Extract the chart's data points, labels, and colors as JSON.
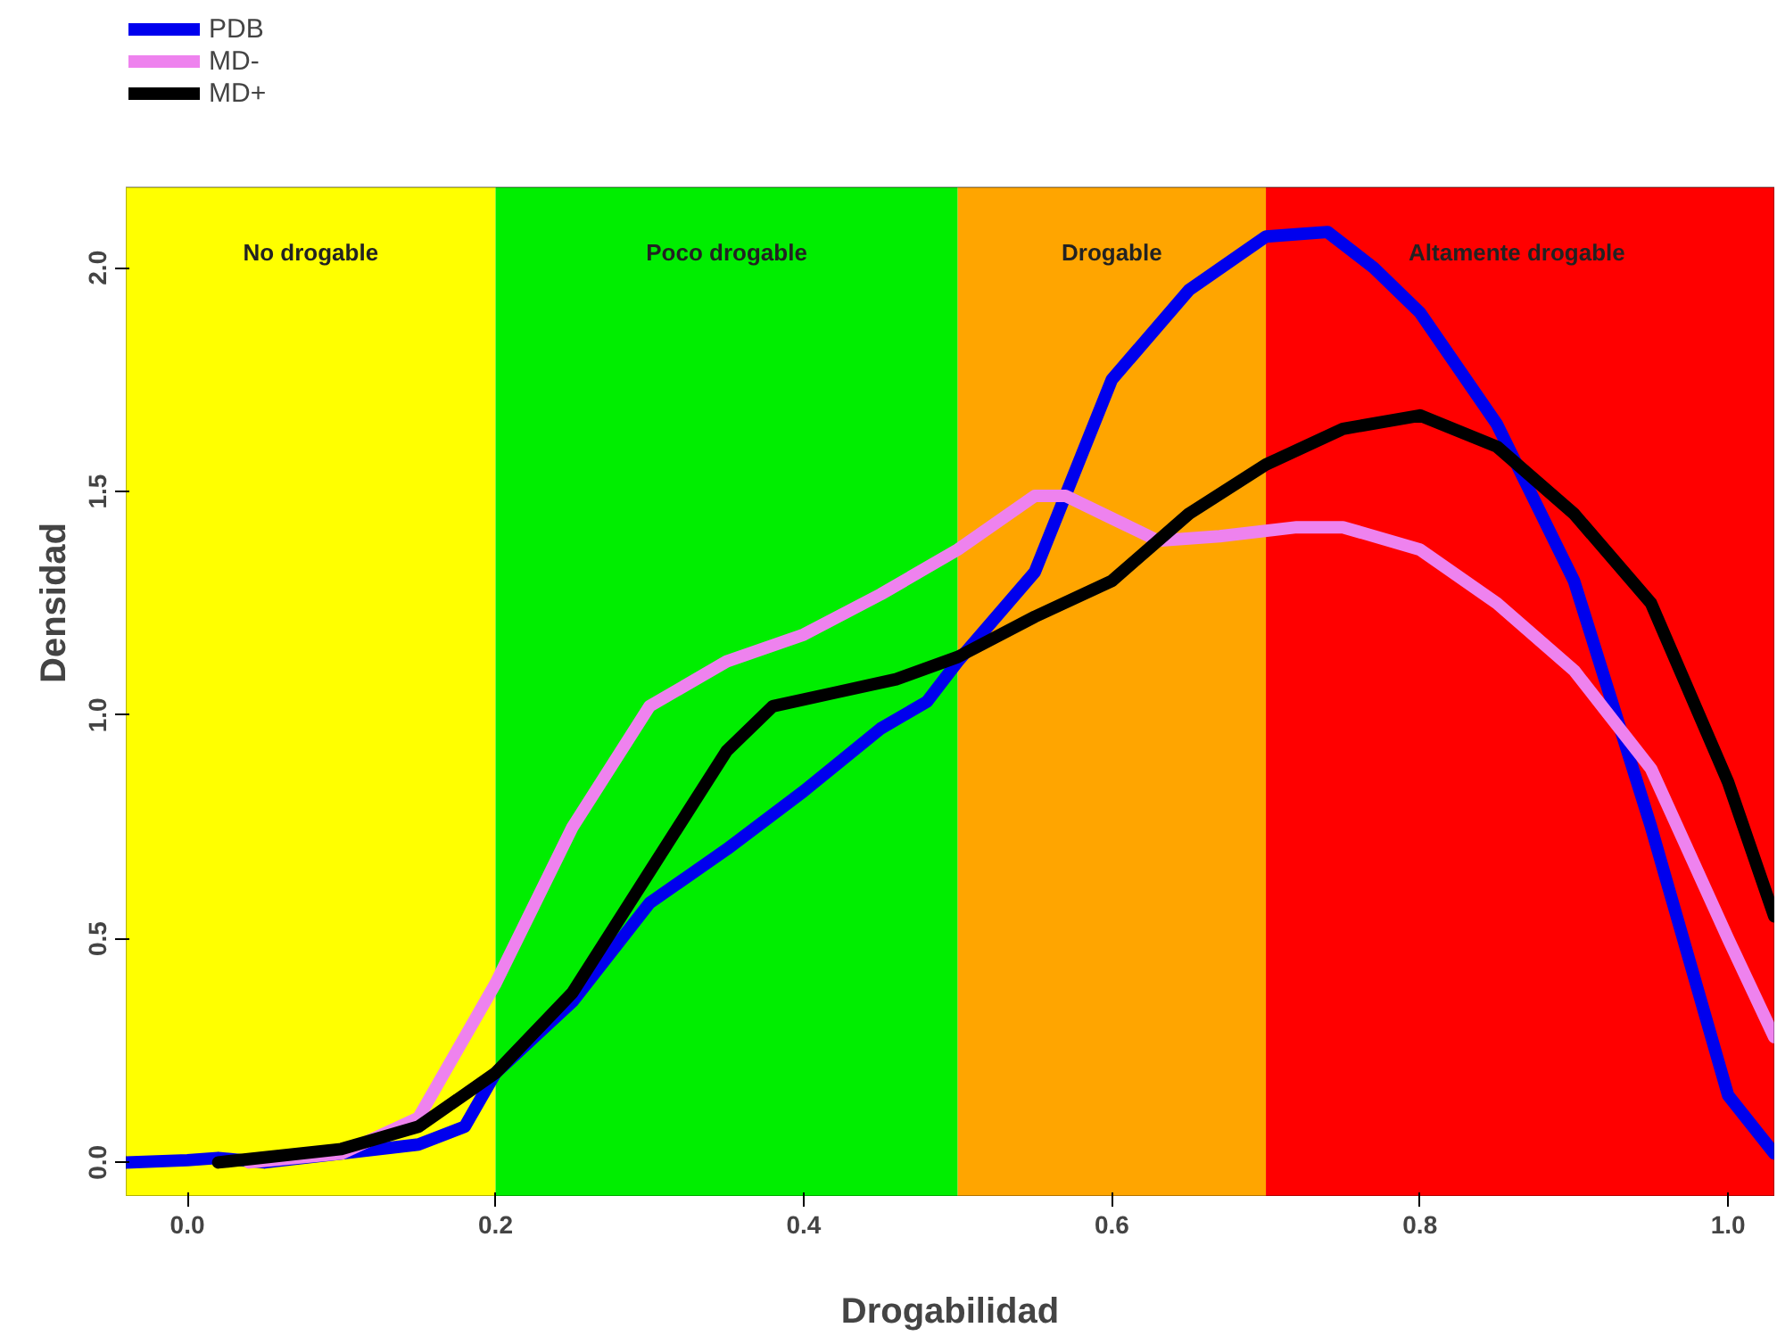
{
  "chart_data": {
    "type": "line",
    "xlabel": "Drogabilidad",
    "ylabel": "Densidad",
    "xlim": [
      -0.04,
      1.03
    ],
    "ylim": [
      -0.075,
      2.18
    ],
    "xticks": [
      {
        "value": 0,
        "label": "0.0"
      },
      0.2,
      0.4,
      0.6,
      0.8,
      {
        "value": 1,
        "label": "1.0"
      }
    ],
    "yticks": [
      {
        "value": 0,
        "label": "0.0"
      },
      0.5,
      {
        "value": 1,
        "label": "1.0"
      },
      1.5,
      {
        "value": 2,
        "label": "2.0"
      }
    ],
    "grid": false,
    "legend": "top left",
    "marker": "none",
    "line_style": "solid",
    "bands": [
      {
        "axis": "x",
        "from": -0.04,
        "to": 0.2,
        "label": "No drogable",
        "color": "#ffff00"
      },
      {
        "axis": "x",
        "from": 0.2,
        "to": 0.5,
        "label": "Poco drogable",
        "color": "#00ee00"
      },
      {
        "axis": "x",
        "from": 0.5,
        "to": 0.7,
        "label": "Drogable",
        "color": "#ffa500"
      },
      {
        "axis": "x",
        "from": 0.7,
        "to": 1.03,
        "label": "Altamente  drogable",
        "color": "#ff0000"
      }
    ],
    "series": [
      {
        "name": "PDB",
        "color": "#0000ee",
        "x": [
          -0.04,
          0.0,
          0.02,
          0.05,
          0.1,
          0.15,
          0.18,
          0.2,
          0.25,
          0.3,
          0.35,
          0.4,
          0.45,
          0.48,
          0.5,
          0.55,
          0.6,
          0.65,
          0.7,
          0.74,
          0.77,
          0.8,
          0.85,
          0.9,
          0.95,
          1.0,
          1.03
        ],
        "values": [
          0.0,
          0.005,
          0.01,
          0.0,
          0.02,
          0.04,
          0.08,
          0.2,
          0.36,
          0.58,
          0.7,
          0.83,
          0.97,
          1.03,
          1.12,
          1.32,
          1.75,
          1.95,
          2.07,
          2.08,
          2.0,
          1.9,
          1.65,
          1.3,
          0.75,
          0.15,
          0.02
        ]
      },
      {
        "name": "MD-",
        "color": "#ee82ee",
        "x": [
          0.04,
          0.1,
          0.15,
          0.2,
          0.25,
          0.3,
          0.35,
          0.4,
          0.45,
          0.5,
          0.55,
          0.57,
          0.6,
          0.63,
          0.67,
          0.72,
          0.75,
          0.8,
          0.85,
          0.9,
          0.95,
          1.0,
          1.03
        ],
        "values": [
          0.0,
          0.02,
          0.1,
          0.4,
          0.75,
          1.02,
          1.12,
          1.18,
          1.27,
          1.37,
          1.49,
          1.49,
          1.44,
          1.39,
          1.4,
          1.42,
          1.42,
          1.37,
          1.25,
          1.1,
          0.88,
          0.5,
          0.28
        ]
      },
      {
        "name": "MD+",
        "color": "#000000",
        "x": [
          0.02,
          0.1,
          0.15,
          0.2,
          0.25,
          0.3,
          0.35,
          0.38,
          0.42,
          0.46,
          0.5,
          0.55,
          0.6,
          0.65,
          0.7,
          0.75,
          0.8,
          0.85,
          0.9,
          0.95,
          1.0,
          1.03
        ],
        "values": [
          0.0,
          0.03,
          0.08,
          0.2,
          0.38,
          0.65,
          0.92,
          1.02,
          1.05,
          1.08,
          1.13,
          1.22,
          1.3,
          1.45,
          1.56,
          1.64,
          1.67,
          1.6,
          1.45,
          1.25,
          0.85,
          0.55
        ]
      }
    ]
  }
}
